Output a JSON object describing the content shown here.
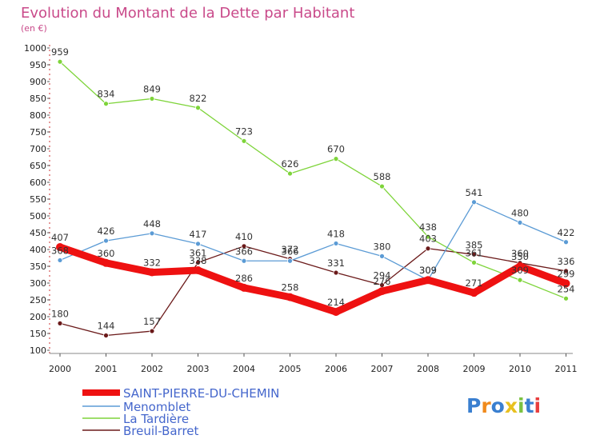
{
  "chart_data": {
    "type": "line",
    "title": "Evolution du Montant de la Dette par Habitant",
    "subtitle": "(en €)",
    "categories": [
      "2000",
      "2001",
      "2002",
      "2003",
      "2004",
      "2005",
      "2006",
      "2007",
      "2008",
      "2009",
      "2010",
      "2011"
    ],
    "ylim": [
      100,
      1000
    ],
    "yticks": [
      100,
      150,
      200,
      250,
      300,
      350,
      400,
      450,
      500,
      550,
      600,
      650,
      700,
      750,
      800,
      850,
      900,
      950,
      1000
    ],
    "grid": false,
    "legend_position": "bottom-left",
    "series": [
      {
        "name": "SAINT-PIERRE-DU-CHEMIN",
        "color": "#ee1111",
        "values": [
          407,
          360,
          332,
          338,
          286,
          258,
          214,
          276,
          309,
          271,
          350,
          299
        ]
      },
      {
        "name": "Menomblet",
        "color": "#5b9bd5",
        "values": [
          368,
          426,
          448,
          417,
          366,
          366,
          418,
          380,
          309,
          541,
          480,
          422
        ]
      },
      {
        "name": "La Tardière",
        "color": "#7ed43a",
        "values": [
          959,
          834,
          849,
          822,
          723,
          626,
          670,
          588,
          438,
          361,
          309,
          254
        ]
      },
      {
        "name": "Breuil-Barret",
        "color": "#6b1a1a",
        "values": [
          180,
          144,
          157,
          361,
          410,
          372,
          331,
          294,
          403,
          385,
          360,
          336
        ]
      }
    ]
  },
  "logo": {
    "text": "Proxiti"
  }
}
